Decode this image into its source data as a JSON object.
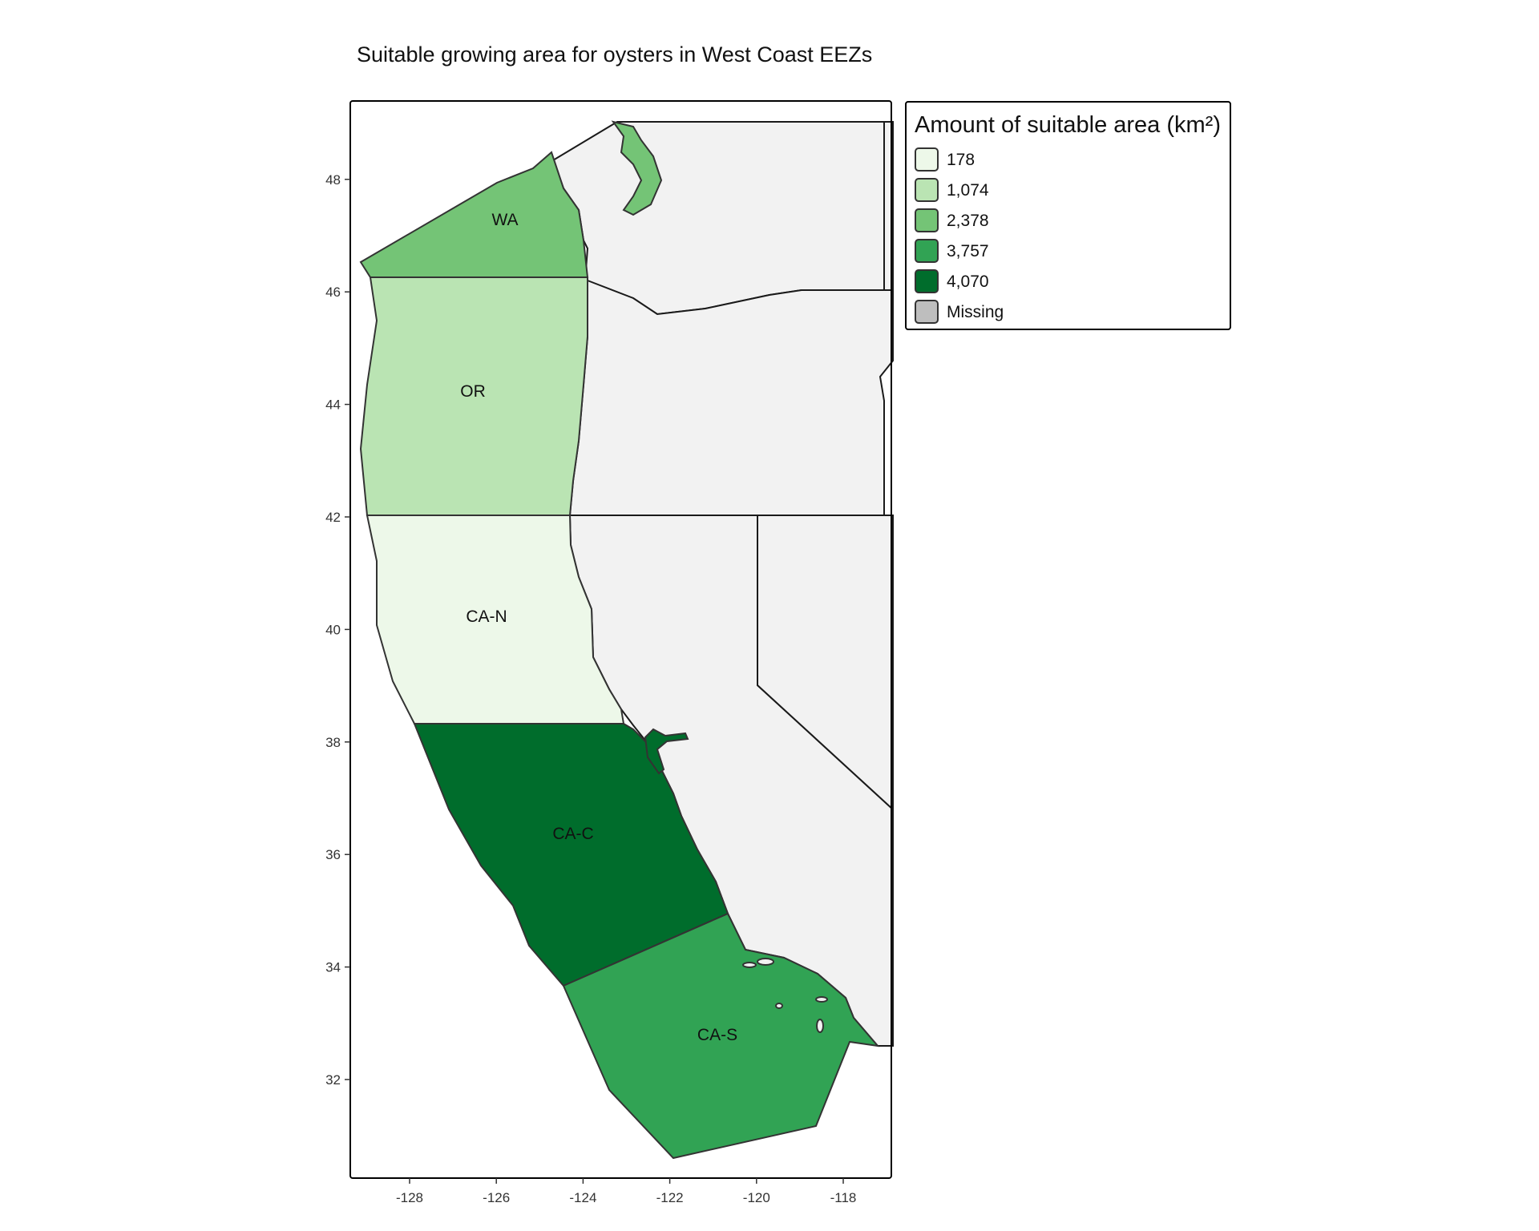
{
  "title": "Suitable growing area for oysters in West Coast EEZs",
  "legend": {
    "title": "Amount of suitable area (km²)",
    "items": [
      {
        "label": "178",
        "color": "#edf8e9"
      },
      {
        "label": "1,074",
        "color": "#bae4b3"
      },
      {
        "label": "2,378",
        "color": "#74c476"
      },
      {
        "label": "3,757",
        "color": "#31a354"
      },
      {
        "label": "4,070",
        "color": "#006d2c"
      },
      {
        "label": "Missing",
        "color": "#bebebe"
      }
    ]
  },
  "map": {
    "land_color": "#f2f2f2",
    "x_ticks": [
      "-128",
      "-126",
      "-124",
      "-122",
      "-120",
      "-118"
    ],
    "y_ticks": [
      "32",
      "34",
      "36",
      "38",
      "40",
      "42",
      "44",
      "46",
      "48"
    ],
    "regions": [
      {
        "label": "WA",
        "suitable_area_km2": "2,378",
        "color": "#74c476"
      },
      {
        "label": "OR",
        "suitable_area_km2": "1,074",
        "color": "#bae4b3"
      },
      {
        "label": "CA-N",
        "suitable_area_km2": "178",
        "color": "#edf8e9"
      },
      {
        "label": "CA-C",
        "suitable_area_km2": "4,070",
        "color": "#006d2c"
      },
      {
        "label": "CA-S",
        "suitable_area_km2": "3,757",
        "color": "#31a354"
      }
    ]
  }
}
